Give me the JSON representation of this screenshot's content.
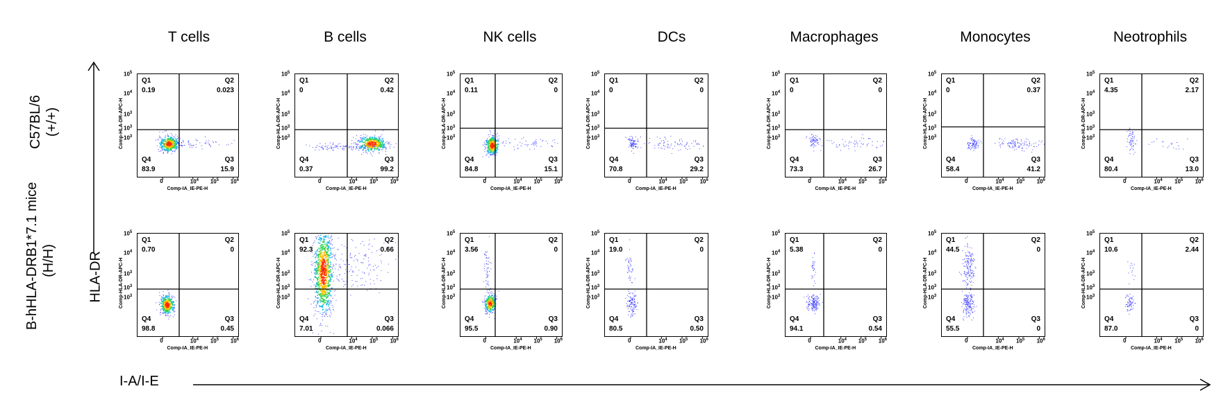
{
  "columns": [
    "T cells",
    "B cells",
    "NK cells",
    "DCs",
    "Macrophages",
    "Monocytes",
    "Neotrophils"
  ],
  "rows": [
    {
      "label_line1": "C57BL/6",
      "label_line2": "(+/+)"
    },
    {
      "label_line1": "B-hHLA-DRB1*7.1 mice",
      "label_line2": "(H/H)"
    }
  ],
  "y_axis_label": "HLA-DR",
  "x_axis_label": "I-A/I-E",
  "plot_x_title": "Comp-IA_IE-PE-H",
  "plot_y_title": "Comp-HLA-DR-APC-H",
  "quadrant_names": [
    "Q1",
    "Q2",
    "Q3",
    "Q4"
  ],
  "x_ticks": [
    "0",
    "10",
    "10",
    "10"
  ],
  "x_tick_exps": [
    "",
    "4",
    "5",
    "6"
  ],
  "y_ticks": [
    "10",
    "10",
    "10",
    "10",
    "10"
  ],
  "y_tick_exps": [
    "5",
    "4",
    "3",
    "3",
    "3"
  ],
  "chart_data": [
    {
      "type": "scatter",
      "row": "C57BL/6 (+/+)",
      "cell": "T cells",
      "Q1": "0.19",
      "Q2": "0.023",
      "Q3": "15.9",
      "Q4": "83.9"
    },
    {
      "type": "scatter",
      "row": "C57BL/6 (+/+)",
      "cell": "B cells",
      "Q1": "0",
      "Q2": "0.42",
      "Q3": "99.2",
      "Q4": "0.37"
    },
    {
      "type": "scatter",
      "row": "C57BL/6 (+/+)",
      "cell": "NK cells",
      "Q1": "0.11",
      "Q2": "0",
      "Q3": "15.1",
      "Q4": "84.8"
    },
    {
      "type": "scatter",
      "row": "C57BL/6 (+/+)",
      "cell": "DCs",
      "Q1": "0",
      "Q2": "0",
      "Q3": "29.2",
      "Q4": "70.8"
    },
    {
      "type": "scatter",
      "row": "C57BL/6 (+/+)",
      "cell": "Macrophages",
      "Q1": "0",
      "Q2": "0",
      "Q3": "26.7",
      "Q4": "73.3"
    },
    {
      "type": "scatter",
      "row": "C57BL/6 (+/+)",
      "cell": "Monocytes",
      "Q1": "0",
      "Q2": "0.37",
      "Q3": "41.2",
      "Q4": "58.4"
    },
    {
      "type": "scatter",
      "row": "C57BL/6 (+/+)",
      "cell": "Neotrophils",
      "Q1": "4.35",
      "Q2": "2.17",
      "Q3": "13.0",
      "Q4": "80.4"
    },
    {
      "type": "scatter",
      "row": "B-hHLA-DRB1*7.1 mice (H/H)",
      "cell": "T cells",
      "Q1": "0.70",
      "Q2": "0",
      "Q3": "0.45",
      "Q4": "98.8"
    },
    {
      "type": "scatter",
      "row": "B-hHLA-DRB1*7.1 mice (H/H)",
      "cell": "B cells",
      "Q1": "92.3",
      "Q2": "0.66",
      "Q3": "0.066",
      "Q4": "7.01"
    },
    {
      "type": "scatter",
      "row": "B-hHLA-DRB1*7.1 mice (H/H)",
      "cell": "NK cells",
      "Q1": "3.56",
      "Q2": "0",
      "Q3": "0.90",
      "Q4": "95.5"
    },
    {
      "type": "scatter",
      "row": "B-hHLA-DRB1*7.1 mice (H/H)",
      "cell": "DCs",
      "Q1": "19.0",
      "Q2": "0",
      "Q3": "0.50",
      "Q4": "80.5"
    },
    {
      "type": "scatter",
      "row": "B-hHLA-DRB1*7.1 mice (H/H)",
      "cell": "Macrophages",
      "Q1": "5.38",
      "Q2": "0",
      "Q3": "0.54",
      "Q4": "94.1"
    },
    {
      "type": "scatter",
      "row": "B-hHLA-DRB1*7.1 mice (H/H)",
      "cell": "Monocytes",
      "Q1": "44.5",
      "Q2": "0",
      "Q3": "0",
      "Q4": "55.5"
    },
    {
      "type": "scatter",
      "row": "B-hHLA-DRB1*7.1 mice (H/H)",
      "cell": "Neotrophils",
      "Q1": "10.6",
      "Q2": "2.44",
      "Q3": "0",
      "Q4": "87.0"
    }
  ],
  "colors": {
    "gate": "#000000",
    "dots": "#3b3bff",
    "hot": "#ff2a00"
  }
}
